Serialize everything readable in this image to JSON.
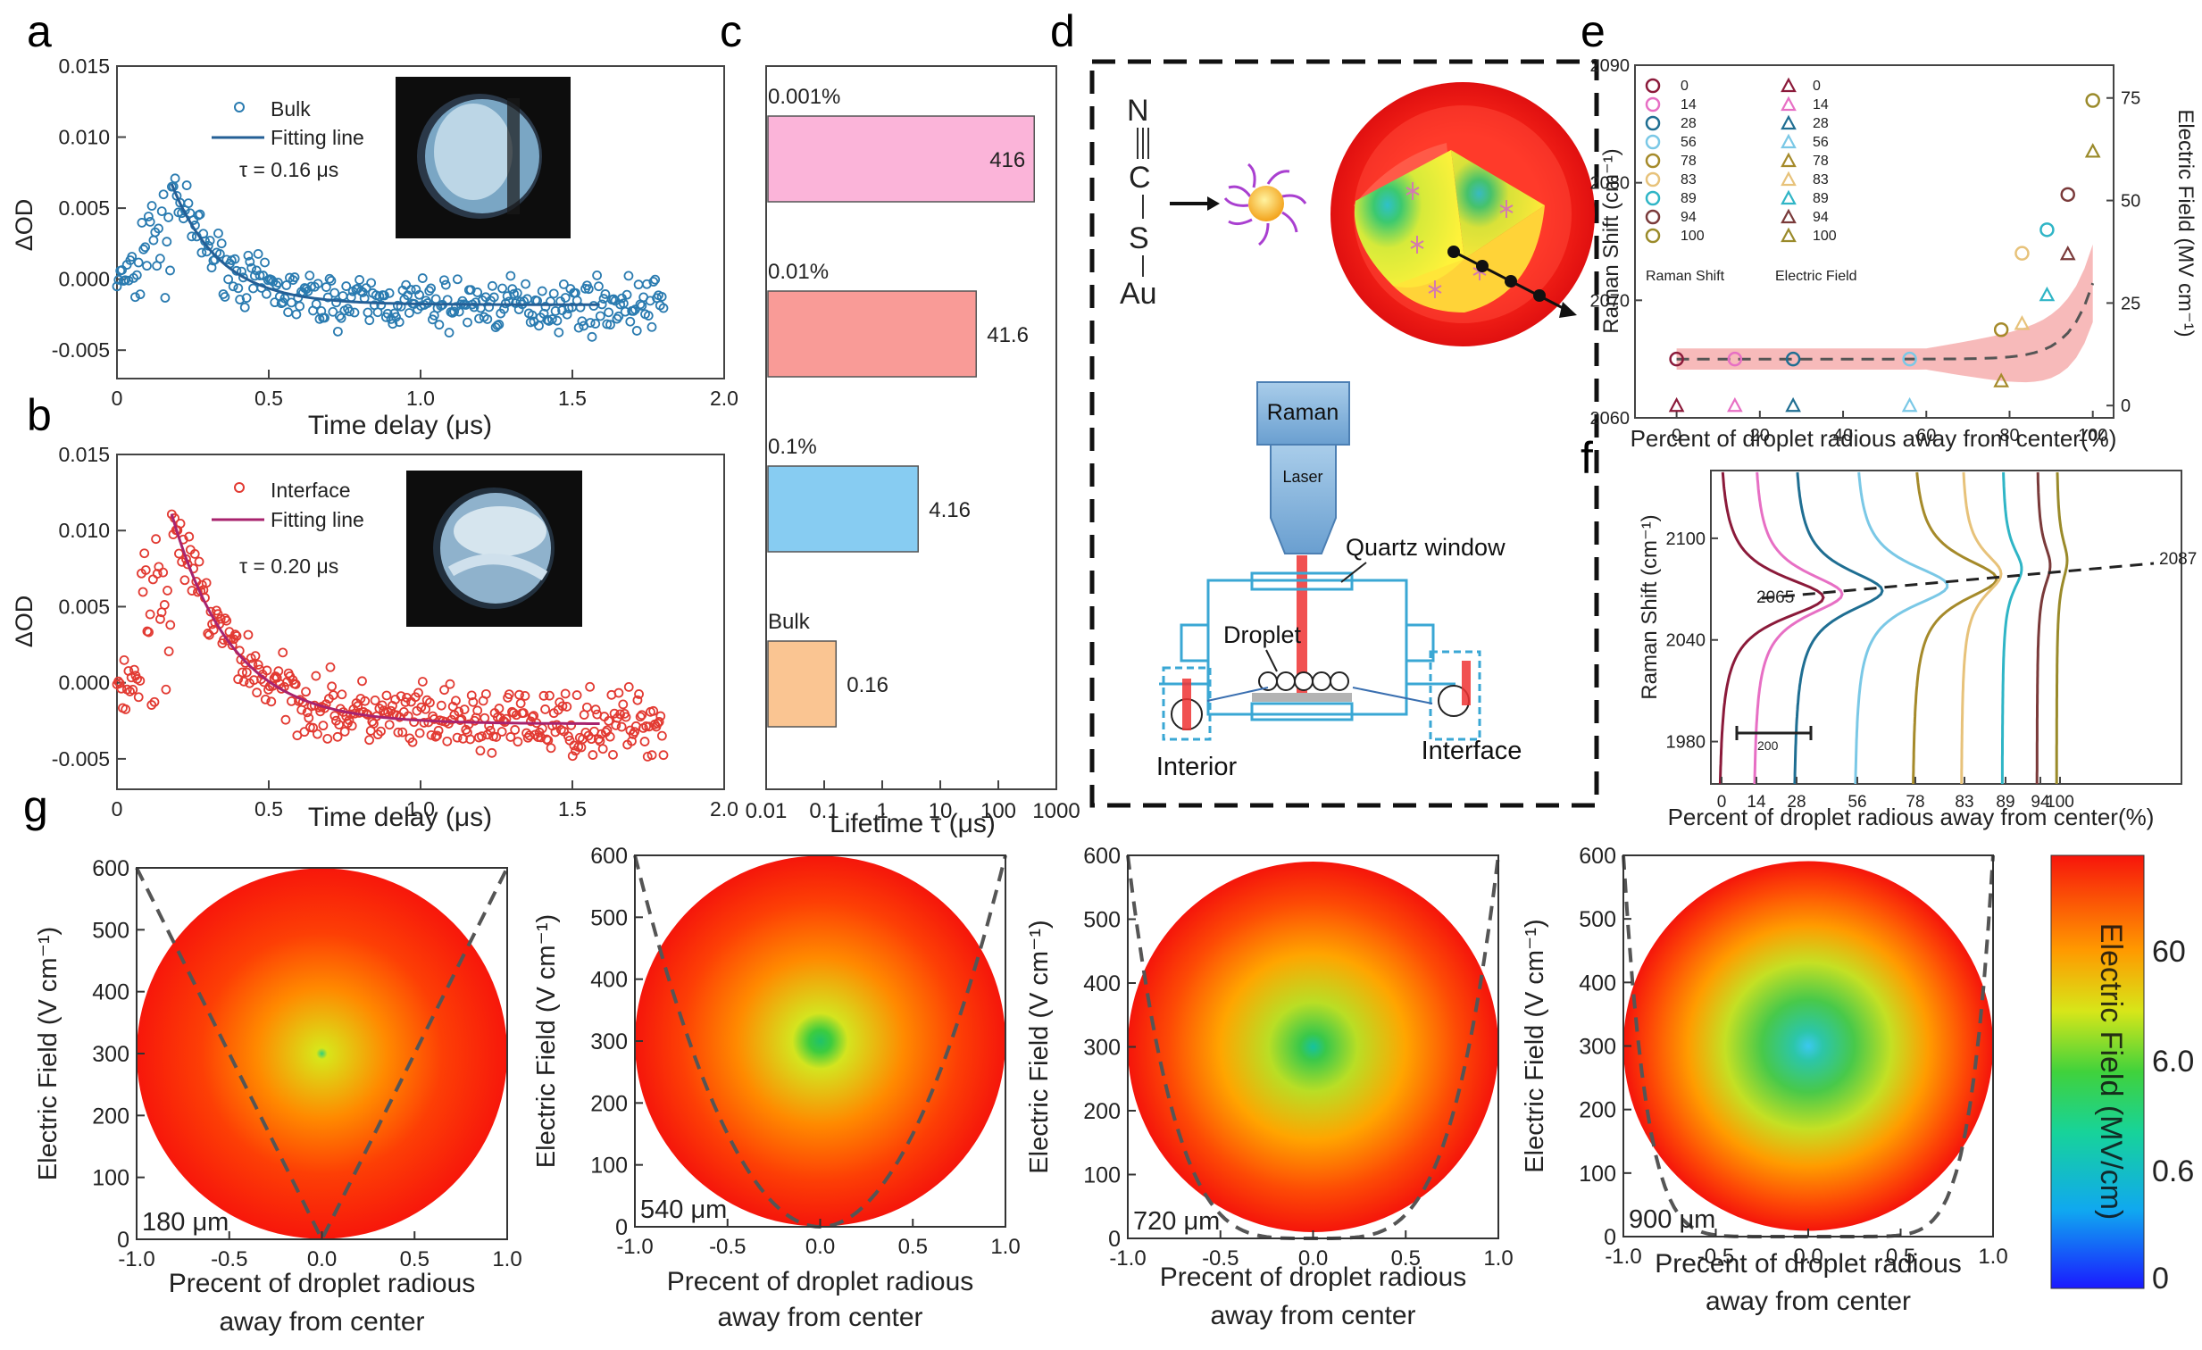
{
  "panel_letters": {
    "a": "a",
    "b": "b",
    "c": "c",
    "d": "d",
    "e": "e",
    "f": "f",
    "g": "g"
  },
  "chart_data": [
    {
      "panel": "a",
      "type": "scatter",
      "xlabel": "Time delay (μs)",
      "ylabel": "ΔOD",
      "xlim": [
        0,
        2.0
      ],
      "ylim": [
        -0.007,
        0.015
      ],
      "xticks": [
        "0",
        "0.5",
        "1.0",
        "1.5",
        "2.0"
      ],
      "yticks": [
        "0.015",
        "0.010",
        "0.005",
        "0.000",
        "-0.005"
      ],
      "ytick_values": [
        0.015,
        0.01,
        0.005,
        0.0,
        -0.005
      ],
      "legend": [
        "Bulk",
        "Fitting line"
      ],
      "annotation": "τ = 0.16 μs",
      "fit": {
        "t0": 0.18,
        "A": 0.0085,
        "tau": 0.16,
        "baseline": -0.0018,
        "t_end": 1.6
      },
      "noise": 0.0016,
      "color": "#2a7bb0",
      "line_color": "#245f96",
      "pre_level": 0.0,
      "points": 330
    },
    {
      "panel": "b",
      "type": "scatter",
      "xlabel": "Time delay (μs)",
      "ylabel": "ΔOD",
      "xlim": [
        0,
        2.0
      ],
      "ylim": [
        -0.007,
        0.015
      ],
      "xticks": [
        "0",
        "0.5",
        "1.0",
        "1.5",
        "2.0"
      ],
      "yticks": [
        "0.015",
        "0.010",
        "0.005",
        "0.000",
        "-0.005"
      ],
      "ytick_values": [
        0.015,
        0.01,
        0.005,
        0.0,
        -0.005
      ],
      "legend": [
        "Interface",
        "Fitting line"
      ],
      "annotation": "τ = 0.20 μs",
      "fit": {
        "t0": 0.18,
        "A": 0.0138,
        "tau": 0.2,
        "baseline": -0.0027,
        "t_end": 1.6
      },
      "noise": 0.0019,
      "color": "#e23a32",
      "line_color": "#a8236e",
      "pre_level": 0.0,
      "points": 380
    },
    {
      "panel": "c",
      "type": "bar",
      "orientation": "horizontal",
      "xscale": "log",
      "xlabel": "Lifetime τ (μs)",
      "xticks": [
        "0.01",
        "0.1",
        "1",
        "10",
        "100",
        "1000"
      ],
      "xtick_values": [
        0.01,
        0.1,
        1,
        10,
        100,
        1000
      ],
      "categories": [
        "0.001%",
        "0.01%",
        "0.1%",
        "Bulk"
      ],
      "values": [
        416,
        41.6,
        4.16,
        0.16
      ],
      "value_labels": [
        "416",
        "41.6",
        "4.16",
        "0.16"
      ],
      "colors": [
        "#fbb4d9",
        "#f99b97",
        "#87ccf2",
        "#fac592"
      ]
    },
    {
      "panel": "e",
      "type": "scatter",
      "xlabel": "Percent of droplet radious away from center(%)",
      "ylabel": "Raman Shift (cm⁻¹)",
      "ylabel2": "Electric Field (MV cm⁻¹)",
      "xlim": [
        -10,
        105
      ],
      "ylim": [
        2060,
        2090
      ],
      "y2lim": [
        -3,
        83
      ],
      "xticks": [
        "0",
        "20",
        "40",
        "60",
        "80",
        "100"
      ],
      "yticks": [
        "2060",
        "2070",
        "2080",
        "2090"
      ],
      "y2ticks": [
        "0",
        "25",
        "50",
        "75"
      ],
      "x": [
        0,
        14,
        28,
        56,
        78,
        83,
        89,
        94,
        100
      ],
      "raman_shift": [
        2065,
        2065,
        2065,
        2065,
        2067.5,
        2074,
        2076,
        2079,
        2087
      ],
      "electric_field": [
        0,
        0,
        0,
        0,
        6,
        20,
        27,
        37,
        62
      ],
      "legend_labels": [
        "0",
        "14",
        "28",
        "56",
        "78",
        "83",
        "89",
        "94",
        "100"
      ],
      "legend_titles": [
        "Raman Shift",
        "Electric Field"
      ],
      "colors": [
        "#8b1a3a",
        "#e76fc4",
        "#1f6e92",
        "#7ac8e6",
        "#a58a2a",
        "#e7c27a",
        "#2fb5c6",
        "#7a3a3a",
        "#9a8a2a"
      ]
    },
    {
      "panel": "f",
      "type": "line",
      "xlabel": "Percent of droplet radious away from center(%)",
      "ylabel": "Raman Shift (cm⁻¹)",
      "yticks": [
        "2100",
        "2040",
        "1980"
      ],
      "xticks": [
        "0",
        "14",
        "28",
        "56",
        "78",
        "83",
        "89",
        "94",
        "100"
      ],
      "peaks": [
        2065,
        2067,
        2069,
        2072,
        2076,
        2079,
        2082,
        2084,
        2087
      ],
      "amplitudes": [
        118,
        100,
        100,
        105,
        95,
        45,
        22,
        15,
        12
      ],
      "colors": [
        "#8b1a3a",
        "#e76fc4",
        "#1f6e92",
        "#7ac8e6",
        "#a58a2a",
        "#e7c27a",
        "#2fb5c6",
        "#7a3a3a",
        "#9a8a2a"
      ],
      "peak_labels": [
        "2065",
        "2087"
      ],
      "scale_label": "200"
    }
  ],
  "panel_d": {
    "molecule": [
      "N",
      "C",
      "S",
      "Au"
    ],
    "instrument": "Raman",
    "laser": "Laser",
    "window": "Quartz window",
    "droplet": "Droplet",
    "interior": "Interior",
    "interface": "Interface"
  },
  "panel_g": {
    "ylabel": "Electric Field (V cm⁻¹)",
    "xlabel_line1": "Precent of droplet radious",
    "xlabel_line2": "away from center",
    "xticks": [
      "-1.0",
      "-0.5",
      "0.0",
      "0.5",
      "1.0"
    ],
    "yticks": [
      "600",
      "500",
      "400",
      "300",
      "200",
      "100",
      "0"
    ],
    "sizes": [
      "180 μm",
      "540 μm",
      "720 μm",
      "900 μm"
    ],
    "core_radius": [
      0.03,
      0.1,
      0.25,
      0.45
    ],
    "curve_power": [
      1,
      2,
      4,
      8
    ],
    "colorbar_title": "Electric Field (MV/cm)",
    "colorbar_ticks": [
      "60",
      "6.0",
      "0.6",
      "0"
    ]
  }
}
